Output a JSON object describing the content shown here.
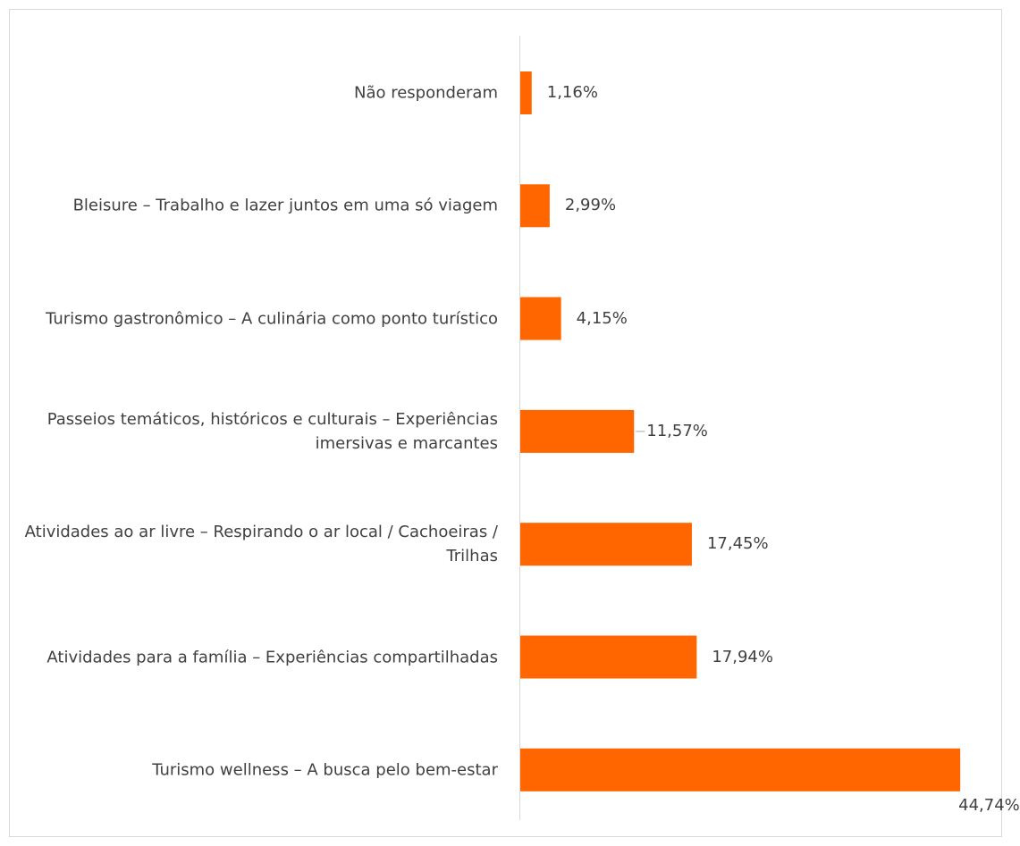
{
  "chart_data": {
    "type": "bar",
    "orientation": "horizontal",
    "categories": [
      "Não responderam",
      "Bleisure – Trabalho e lazer juntos em uma só viagem",
      "Turismo gastronômico – A culinária como ponto turístico",
      "Passeios temáticos, históricos e culturais – Experiências imersivas e marcantes",
      "Atividades ao ar livre – Respirando o ar local / Cachoeiras / Trilhas",
      "Atividades para a família – Experiências compartilhadas",
      "Turismo wellness –  A busca pelo bem-estar"
    ],
    "values": [
      1.16,
      2.99,
      4.15,
      11.57,
      17.45,
      17.94,
      44.74
    ],
    "value_labels": [
      "1,16%",
      "2,99%",
      "4,15%",
      "11,57%",
      "17,45%",
      "17,94%",
      "44,74%"
    ],
    "color": "#ff6600"
  }
}
